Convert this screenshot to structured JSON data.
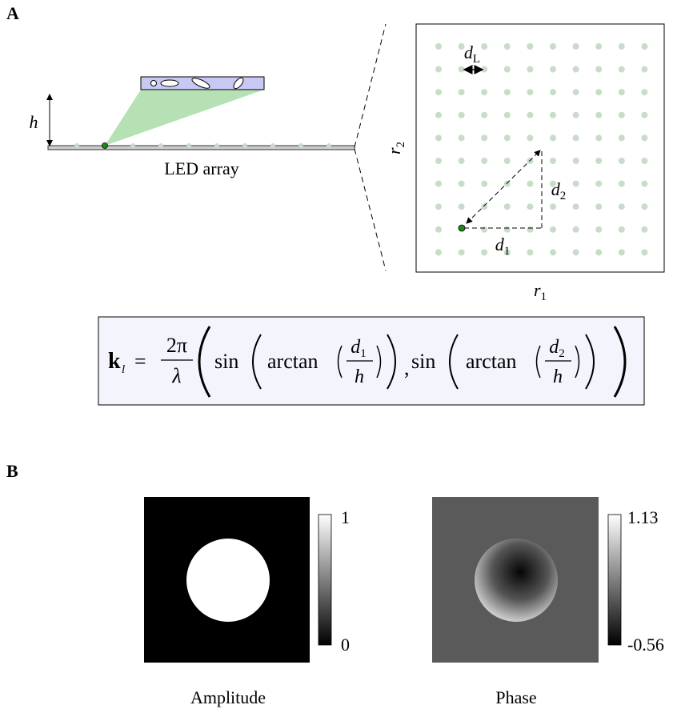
{
  "panel_a": {
    "label": "A",
    "side_view": {
      "height_label": "h",
      "array_label": "LED array"
    },
    "grid_view": {
      "pitch": {
        "base": "d",
        "sub": "L"
      },
      "axis_x": {
        "base": "r",
        "sub": "1"
      },
      "axis_y": {
        "base": "r",
        "sub": "2"
      },
      "dist_1": {
        "base": "d",
        "sub": "1"
      },
      "dist_2": {
        "base": "d",
        "sub": "2"
      }
    },
    "formula": {
      "lhs": "k",
      "lhs_sub": "l",
      "eq": "=",
      "num": "2π",
      "den": "λ",
      "sin_1": "sin",
      "arctan_1": "arctan",
      "frac_1_num": "d",
      "frac_1_sub": "1",
      "frac_1_den": "h",
      "comma": ",",
      "sin_2": "sin",
      "arctan_2": "arctan",
      "frac_2_num": "d",
      "frac_2_sub": "2",
      "frac_2_den": "h"
    }
  },
  "panel_b": {
    "label": "B",
    "images": [
      {
        "title": "Amplitude",
        "colorbar_max": 1,
        "colorbar_min": 0
      },
      {
        "title": "Phase",
        "colorbar_max": 1.13,
        "colorbar_min": -0.56
      }
    ]
  }
}
